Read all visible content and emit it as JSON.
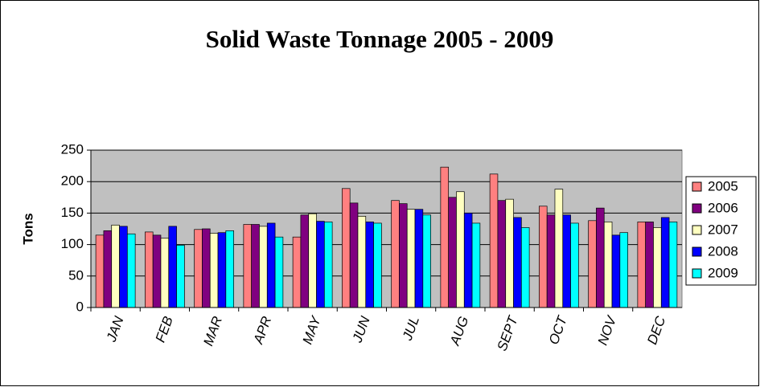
{
  "chart_data": {
    "type": "bar",
    "title": "Solid Waste Tonnage 2005 - 2009",
    "y_label": "Tons",
    "categories": [
      "JAN",
      "FEB",
      "MAR",
      "APR",
      "MAY",
      "JUN",
      "JUL",
      "AUG",
      "SEPT",
      "OCT",
      "NOV",
      "DEC"
    ],
    "series": [
      {
        "name": "2005",
        "color": "#ff8080",
        "values": [
          115,
          120,
          124,
          132,
          112,
          189,
          170,
          223,
          212,
          161,
          138,
          136
        ]
      },
      {
        "name": "2006",
        "color": "#800080",
        "values": [
          122,
          115,
          125,
          132,
          147,
          166,
          165,
          175,
          170,
          147,
          158,
          136
        ]
      },
      {
        "name": "2007",
        "color": "#ffffc0",
        "values": [
          131,
          110,
          118,
          129,
          149,
          145,
          156,
          184,
          172,
          188,
          136,
          127
        ]
      },
      {
        "name": "2008",
        "color": "#0000ff",
        "values": [
          129,
          129,
          119,
          134,
          137,
          136,
          156,
          150,
          143,
          147,
          115,
          143
        ]
      },
      {
        "name": "2009",
        "color": "#00ffff",
        "values": [
          117,
          99,
          122,
          112,
          136,
          134,
          147,
          134,
          127,
          134,
          119,
          136
        ]
      }
    ],
    "ylim": [
      0,
      250
    ],
    "yticks": [
      0,
      50,
      100,
      150,
      200,
      250
    ],
    "grid": true,
    "legend": "right",
    "plot_background": "#c0c0c0"
  }
}
